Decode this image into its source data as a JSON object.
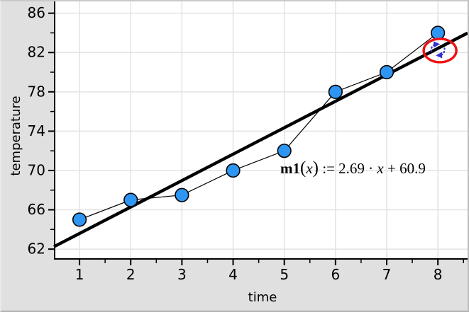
{
  "chart_data": {
    "type": "scatter",
    "title": "",
    "xlabel": "time",
    "ylabel": "temperature",
    "x": [
      1,
      2,
      3,
      4,
      5,
      6,
      7,
      8
    ],
    "y": [
      65,
      67,
      67.5,
      70,
      72,
      78,
      80,
      84
    ],
    "connected": true,
    "x_ticks": [
      1,
      2,
      3,
      4,
      5,
      6,
      7,
      8
    ],
    "y_ticks": [
      62,
      66,
      70,
      74,
      78,
      82,
      86
    ],
    "x_minor_ticks": [
      1.5,
      2.5,
      3.5,
      4.5,
      5.5,
      6.5,
      7.5,
      8.5
    ],
    "y_minor_ticks": [
      64,
      68,
      72,
      76,
      80,
      84
    ],
    "xlim": [
      0.5,
      8.58
    ],
    "ylim": [
      61.0,
      87.2
    ],
    "grid": true,
    "legend": "none",
    "movable_line": {
      "slope": 2.69,
      "intercept": 60.9,
      "label": "m1(x) := 2.69·x + 60.9",
      "grab_x": 8
    }
  },
  "equation": {
    "name": "m1",
    "lparen": "(",
    "variable": "x",
    "rparen": ")",
    "assign": " := ",
    "slope": "2.69",
    "times": " · ",
    "variable2": "x",
    "plus": " + ",
    "intercept": "60.9"
  },
  "colors": {
    "point_fill": "#2E96F2",
    "point_stroke": "#000000",
    "data_line": "#000000",
    "movable_line": "#000000",
    "grab_ring": "#EE1111",
    "rotate_icon": "#3333CC",
    "gridline": "#E3E3E3",
    "axis": "#000000",
    "plot_bg": "#FFFFFF",
    "margin_bg": "#E0E0E0"
  }
}
